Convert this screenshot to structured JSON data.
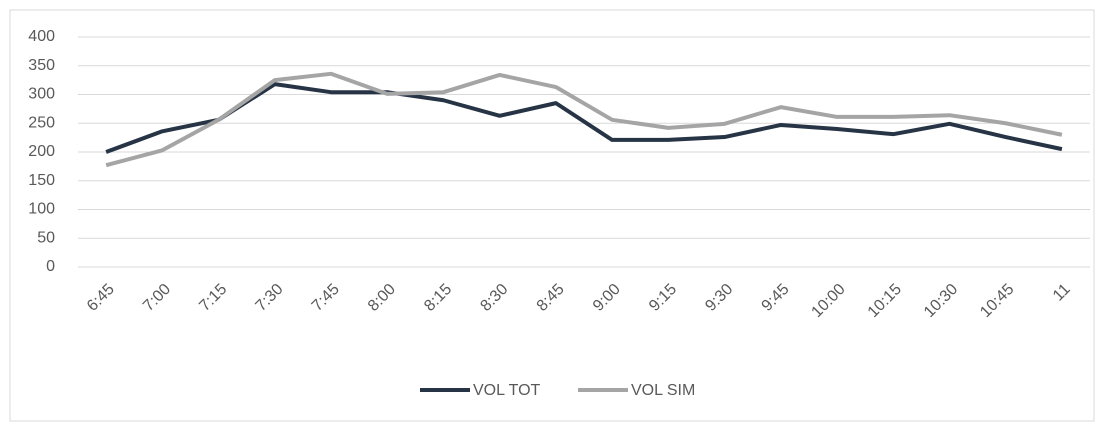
{
  "chart_data": {
    "type": "line",
    "categories": [
      "6:45",
      "7:00",
      "7:15",
      "7:30",
      "7:45",
      "8:00",
      "8:15",
      "8:30",
      "8:45",
      "9:00",
      "9:15",
      "9:30",
      "9:45",
      "10:00",
      "10:15",
      "10:30",
      "10:45",
      "11"
    ],
    "series": [
      {
        "name": "VOL TOT",
        "color": "#263445",
        "values": [
          200,
          236,
          256,
          318,
          304,
          304,
          290,
          263,
          285,
          221,
          221,
          226,
          247,
          240,
          231,
          249,
          226,
          205
        ]
      },
      {
        "name": "VOL SIM",
        "color": "#a5a5a5",
        "values": [
          177,
          203,
          256,
          325,
          336,
          301,
          304,
          334,
          313,
          256,
          242,
          249,
          278,
          261,
          261,
          264,
          250,
          230
        ]
      }
    ],
    "ylim": [
      0,
      400
    ],
    "yticks": [
      0,
      50,
      100,
      150,
      200,
      250,
      300,
      350,
      400
    ],
    "grid": true,
    "legend": "bottom"
  }
}
